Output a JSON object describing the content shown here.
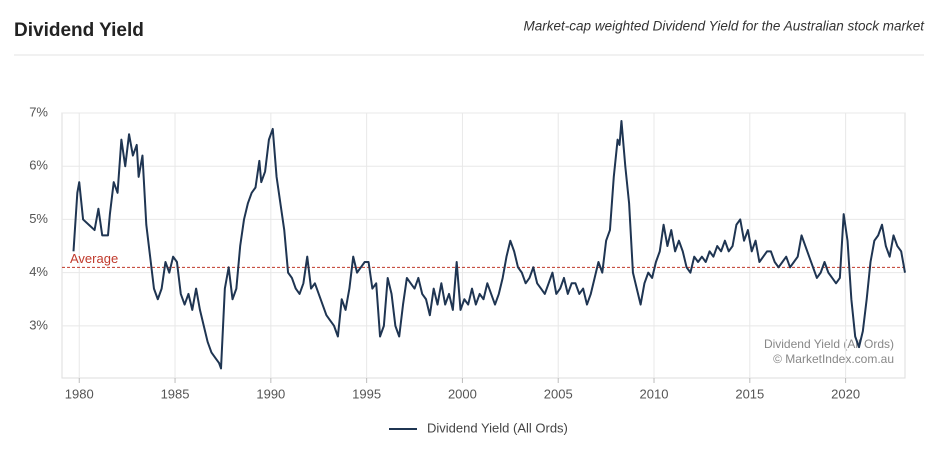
{
  "chart_data": {
    "type": "line",
    "title": "Dividend Yield",
    "subtitle": "Market-cap weighted Dividend Yield for the Australian stock market",
    "annotations": [
      "Dividend Yield (All Ords)",
      "© MarketIndex.com.au"
    ],
    "average": {
      "label": "Average",
      "value": 4.1,
      "color": "#c0392b"
    },
    "xlim": [
      1979.1,
      2023.1
    ],
    "xticks": [
      1980,
      1985,
      1990,
      1995,
      2000,
      2005,
      2010,
      2015,
      2020
    ],
    "ylim": [
      2.02,
      7.0
    ],
    "yticks": [
      {
        "value": 3,
        "label": "3%"
      },
      {
        "value": 4,
        "label": "4%"
      },
      {
        "value": 5,
        "label": "5%"
      },
      {
        "value": 6,
        "label": "6%"
      },
      {
        "value": 7,
        "label": "7%"
      }
    ],
    "grid": true,
    "legend": "bottom",
    "x": [
      1979.7,
      1979.9,
      1980.0,
      1980.2,
      1980.5,
      1980.8,
      1981.0,
      1981.2,
      1981.5,
      1981.6,
      1981.8,
      1982.0,
      1982.2,
      1982.4,
      1982.6,
      1982.8,
      1983.0,
      1983.1,
      1983.3,
      1983.5,
      1983.7,
      1983.9,
      1984.1,
      1984.3,
      1984.5,
      1984.7,
      1984.9,
      1985.1,
      1985.3,
      1985.5,
      1985.7,
      1985.9,
      1986.1,
      1986.3,
      1986.5,
      1986.7,
      1986.9,
      1987.1,
      1987.3,
      1987.4,
      1987.6,
      1987.8,
      1988.0,
      1988.2,
      1988.4,
      1988.6,
      1988.8,
      1989.0,
      1989.2,
      1989.4,
      1989.5,
      1989.7,
      1989.9,
      1990.1,
      1990.3,
      1990.5,
      1990.7,
      1990.9,
      1991.1,
      1991.3,
      1991.5,
      1991.7,
      1991.9,
      1992.1,
      1992.3,
      1992.5,
      1992.7,
      1992.9,
      1993.1,
      1993.3,
      1993.5,
      1993.7,
      1993.9,
      1994.1,
      1994.3,
      1994.5,
      1994.7,
      1994.9,
      1995.1,
      1995.3,
      1995.5,
      1995.7,
      1995.9,
      1996.1,
      1996.3,
      1996.5,
      1996.7,
      1996.9,
      1997.1,
      1997.3,
      1997.5,
      1997.7,
      1997.9,
      1998.1,
      1998.3,
      1998.5,
      1998.7,
      1998.9,
      1999.1,
      1999.3,
      1999.5,
      1999.7,
      1999.9,
      2000.1,
      2000.3,
      2000.5,
      2000.7,
      2000.9,
      2001.1,
      2001.3,
      2001.5,
      2001.7,
      2001.9,
      2002.1,
      2002.3,
      2002.5,
      2002.7,
      2002.9,
      2003.1,
      2003.3,
      2003.5,
      2003.7,
      2003.9,
      2004.1,
      2004.3,
      2004.5,
      2004.7,
      2004.9,
      2005.1,
      2005.3,
      2005.5,
      2005.7,
      2005.9,
      2006.1,
      2006.3,
      2006.5,
      2006.7,
      2006.9,
      2007.1,
      2007.3,
      2007.5,
      2007.7,
      2007.9,
      2008.1,
      2008.2,
      2008.3,
      2008.5,
      2008.7,
      2008.9,
      2009.1,
      2009.3,
      2009.5,
      2009.7,
      2009.9,
      2010.1,
      2010.3,
      2010.5,
      2010.7,
      2010.9,
      2011.1,
      2011.3,
      2011.5,
      2011.7,
      2011.9,
      2012.1,
      2012.3,
      2012.5,
      2012.7,
      2012.9,
      2013.1,
      2013.3,
      2013.5,
      2013.7,
      2013.9,
      2014.1,
      2014.3,
      2014.5,
      2014.7,
      2014.9,
      2015.1,
      2015.3,
      2015.5,
      2015.7,
      2015.9,
      2016.1,
      2016.3,
      2016.5,
      2016.7,
      2016.9,
      2017.1,
      2017.3,
      2017.5,
      2017.7,
      2017.9,
      2018.1,
      2018.3,
      2018.5,
      2018.7,
      2018.9,
      2019.1,
      2019.3,
      2019.5,
      2019.7,
      2019.9,
      2020.1,
      2020.3,
      2020.5,
      2020.7,
      2020.9,
      2021.1,
      2021.3,
      2021.5,
      2021.7,
      2021.9,
      2022.1,
      2022.3,
      2022.5,
      2022.7,
      2022.9,
      2023.0,
      2023.1
    ],
    "series": [
      {
        "name": "Dividend Yield (All Ords)",
        "color": "#1f3552",
        "values": [
          4.4,
          5.5,
          5.7,
          5.0,
          4.9,
          4.8,
          5.2,
          4.7,
          4.7,
          5.1,
          5.7,
          5.5,
          6.5,
          6.0,
          6.6,
          6.2,
          6.4,
          5.8,
          6.2,
          4.9,
          4.3,
          3.7,
          3.5,
          3.7,
          4.2,
          4.0,
          4.3,
          4.2,
          3.6,
          3.4,
          3.6,
          3.3,
          3.7,
          3.3,
          3.0,
          2.7,
          2.5,
          2.4,
          2.3,
          2.2,
          3.7,
          4.1,
          3.5,
          3.7,
          4.5,
          5.0,
          5.3,
          5.5,
          5.6,
          6.1,
          5.7,
          5.9,
          6.5,
          6.7,
          5.8,
          5.3,
          4.8,
          4.0,
          3.9,
          3.7,
          3.6,
          3.8,
          4.3,
          3.7,
          3.8,
          3.6,
          3.4,
          3.2,
          3.1,
          3.0,
          2.8,
          3.5,
          3.3,
          3.7,
          4.3,
          4.0,
          4.1,
          4.2,
          4.2,
          3.7,
          3.8,
          2.8,
          3.0,
          3.9,
          3.6,
          3.0,
          2.8,
          3.4,
          3.9,
          3.8,
          3.7,
          3.9,
          3.6,
          3.5,
          3.2,
          3.7,
          3.4,
          3.8,
          3.4,
          3.6,
          3.3,
          4.2,
          3.3,
          3.5,
          3.4,
          3.7,
          3.4,
          3.6,
          3.5,
          3.8,
          3.6,
          3.4,
          3.6,
          3.9,
          4.3,
          4.6,
          4.4,
          4.1,
          4.0,
          3.8,
          3.9,
          4.1,
          3.8,
          3.7,
          3.6,
          3.8,
          4.0,
          3.6,
          3.7,
          3.9,
          3.6,
          3.8,
          3.8,
          3.6,
          3.7,
          3.4,
          3.6,
          3.9,
          4.2,
          4.0,
          4.6,
          4.8,
          5.8,
          6.5,
          6.4,
          6.85,
          6.0,
          5.3,
          4.0,
          3.7,
          3.4,
          3.8,
          4.0,
          3.9,
          4.2,
          4.4,
          4.9,
          4.5,
          4.8,
          4.4,
          4.6,
          4.4,
          4.1,
          4.0,
          4.3,
          4.2,
          4.3,
          4.2,
          4.4,
          4.3,
          4.5,
          4.4,
          4.6,
          4.4,
          4.5,
          4.9,
          5.0,
          4.6,
          4.8,
          4.4,
          4.6,
          4.2,
          4.3,
          4.4,
          4.4,
          4.2,
          4.1,
          4.2,
          4.3,
          4.1,
          4.2,
          4.3,
          4.7,
          4.5,
          4.3,
          4.1,
          3.9,
          4.0,
          4.2,
          4.0,
          3.9,
          3.8,
          3.9,
          5.1,
          4.6,
          3.5,
          2.8,
          2.6,
          2.9,
          3.5,
          4.2,
          4.6,
          4.7,
          4.9,
          4.5,
          4.3,
          4.7,
          4.5,
          4.4,
          4.2,
          4.0
        ]
      }
    ]
  }
}
